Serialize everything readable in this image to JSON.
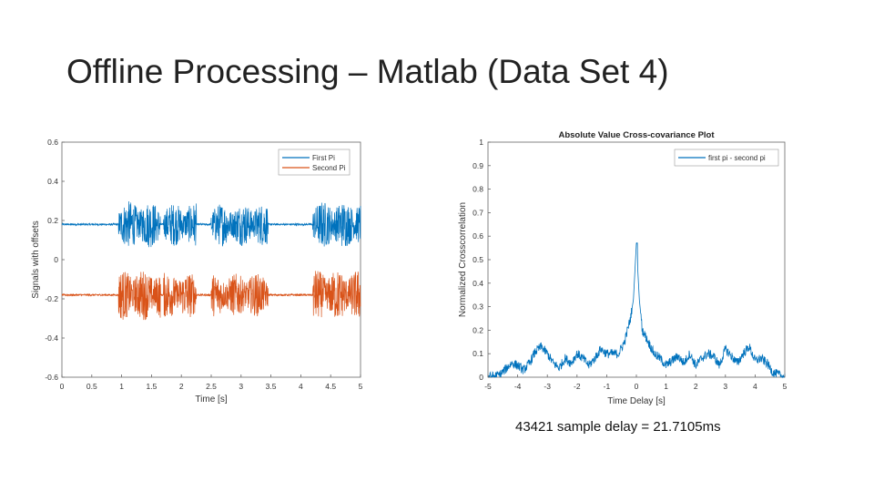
{
  "slide": {
    "title": "Offline Processing – Matlab (Data Set 4)",
    "caption": "43421 sample delay = 21.7105ms"
  },
  "colors": {
    "series1": "#0072BD",
    "series2": "#D95319",
    "axis": "#666666",
    "grid": "#e6e6e6"
  },
  "chart_data": [
    {
      "type": "line",
      "title": "",
      "xlabel": "Time [s]",
      "ylabel": "Signals with offsets",
      "xlim": [
        0,
        5
      ],
      "ylim": [
        -0.6,
        0.6
      ],
      "xticks": [
        0,
        0.5,
        1,
        1.5,
        2,
        2.5,
        3,
        3.5,
        4,
        4.5,
        5
      ],
      "yticks": [
        0.6,
        0.4,
        0.2,
        0,
        -0.2,
        -0.4,
        -0.6
      ],
      "yticklabels": [
        "0.6",
        "0.4",
        "0.2",
        "0",
        "-0.2",
        "-0.4",
        "-0.6"
      ],
      "legend": {
        "placement": "top-right",
        "entries": [
          "First Pi",
          "Second Pi"
        ]
      },
      "series": [
        {
          "name": "First Pi",
          "offset": 0.18,
          "noise_floor": 0.005,
          "bursts": [
            [
              0.95,
              1.65,
              0.12
            ],
            [
              1.7,
              2.25,
              0.11
            ],
            [
              2.5,
              3.45,
              0.11
            ],
            [
              4.2,
              5.0,
              0.12
            ]
          ]
        },
        {
          "name": "Second Pi",
          "offset": -0.18,
          "noise_floor": 0.005,
          "bursts": [
            [
              0.95,
              1.65,
              0.13
            ],
            [
              1.7,
              2.25,
              0.12
            ],
            [
              2.5,
              3.45,
              0.11
            ],
            [
              4.2,
              5.0,
              0.13
            ]
          ]
        }
      ]
    },
    {
      "type": "line",
      "title": "Absolute Value Cross-covariance Plot",
      "xlabel": "Time Delay [s]",
      "ylabel": "Normalized Crosscorrelation",
      "xlim": [
        -5,
        5
      ],
      "ylim": [
        0,
        1
      ],
      "xticks": [
        -5,
        -4,
        -3,
        -2,
        -1,
        0,
        1,
        2,
        3,
        4,
        5
      ],
      "yticks": [
        1,
        0.9,
        0.8,
        0.7,
        0.6,
        0.5,
        0.4,
        0.3,
        0.2,
        0.1,
        0
      ],
      "yticklabels": [
        "1",
        "0.9",
        "0.8",
        "0.7",
        "0.6",
        "0.5",
        "0.4",
        "0.3",
        "0.2",
        "0.1",
        "0"
      ],
      "legend": {
        "placement": "top-right",
        "entries": [
          "first pi - second pi"
        ]
      },
      "peak": {
        "x": 0.0217,
        "y": 0.57
      },
      "series": [
        {
          "name": "first pi - second pi",
          "x": [
            -5,
            -4.6,
            -4.2,
            -4.0,
            -3.8,
            -3.6,
            -3.4,
            -3.2,
            -3.0,
            -2.8,
            -2.6,
            -2.4,
            -2.2,
            -2.0,
            -1.8,
            -1.6,
            -1.4,
            -1.2,
            -1.0,
            -0.8,
            -0.6,
            -0.4,
            -0.2,
            -0.1,
            0.0,
            0.1,
            0.2,
            0.4,
            0.6,
            0.8,
            1.0,
            1.2,
            1.4,
            1.6,
            1.8,
            2.0,
            2.2,
            2.4,
            2.6,
            2.8,
            3.0,
            3.2,
            3.4,
            3.6,
            3.8,
            4.0,
            4.2,
            4.4,
            4.6,
            5
          ],
          "y": [
            0.0,
            0.01,
            0.06,
            0.05,
            0.03,
            0.06,
            0.11,
            0.13,
            0.1,
            0.06,
            0.04,
            0.08,
            0.06,
            0.1,
            0.08,
            0.05,
            0.08,
            0.12,
            0.1,
            0.1,
            0.1,
            0.15,
            0.25,
            0.33,
            0.57,
            0.33,
            0.2,
            0.15,
            0.1,
            0.08,
            0.05,
            0.07,
            0.09,
            0.06,
            0.1,
            0.05,
            0.08,
            0.1,
            0.09,
            0.05,
            0.12,
            0.09,
            0.06,
            0.1,
            0.13,
            0.07,
            0.08,
            0.06,
            0.02,
            0.0
          ]
        }
      ]
    }
  ]
}
